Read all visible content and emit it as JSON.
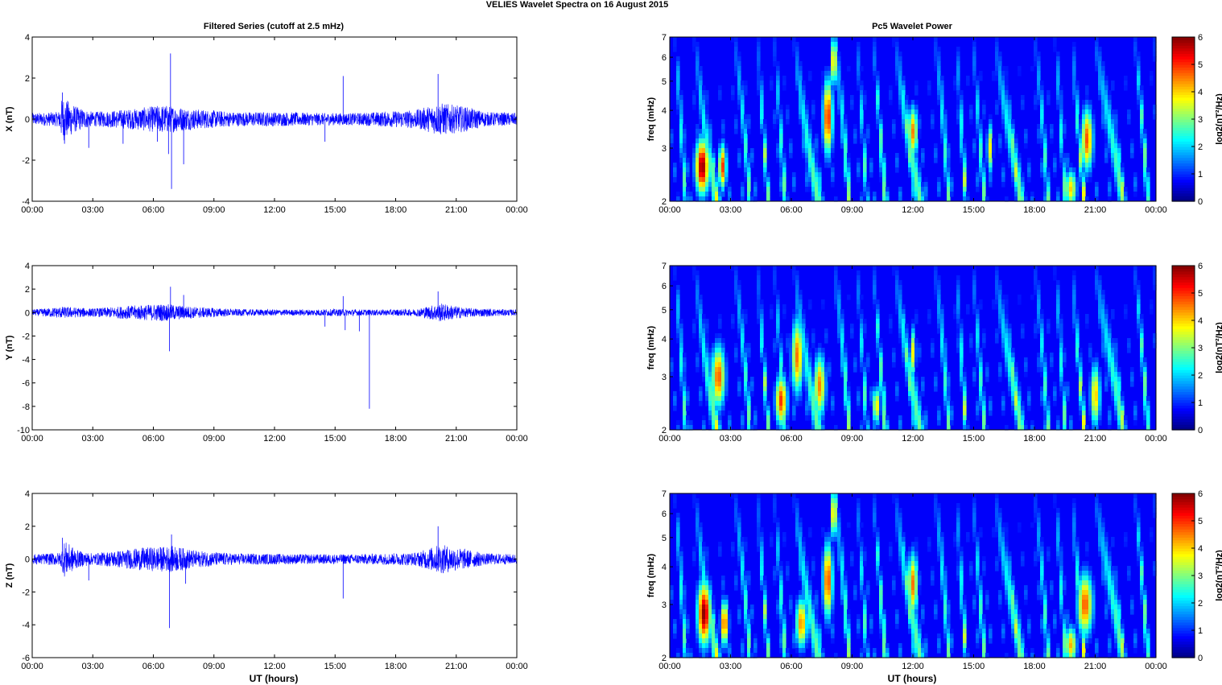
{
  "figure": {
    "title": "VELIES Wavelet Spectra on 16 August    2015",
    "left_column_title": "Filtered Series (cutoff at 2.5 mHz)",
    "right_column_title": "Pc5 Wavelet Power",
    "xlabel": "UT (hours)"
  },
  "colors": {
    "series_line": "#0000ff",
    "axes": "#000000",
    "background": "#ffffff"
  },
  "chart_data": [
    {
      "type": "line",
      "name": "x-series",
      "ylabel": "X (nT)",
      "x_ticks": [
        "00:00",
        "03:00",
        "06:00",
        "09:00",
        "12:00",
        "15:00",
        "18:00",
        "21:00",
        "00:00"
      ],
      "xlim_hours": [
        0,
        24
      ],
      "ylim": [
        -4,
        4
      ],
      "y_ticks": [
        "-4",
        "-2",
        "0",
        "2",
        "4"
      ],
      "noise_envelope": [
        [
          0,
          0.3
        ],
        [
          1.3,
          0.35
        ],
        [
          1.5,
          1.1
        ],
        [
          2.2,
          0.6
        ],
        [
          3,
          0.35
        ],
        [
          5,
          0.5
        ],
        [
          6.5,
          0.7
        ],
        [
          8,
          0.5
        ],
        [
          10,
          0.35
        ],
        [
          12,
          0.35
        ],
        [
          14.5,
          0.3
        ],
        [
          16,
          0.3
        ],
        [
          19,
          0.45
        ],
        [
          20.2,
          0.8
        ],
        [
          21.5,
          0.6
        ],
        [
          22.5,
          0.35
        ],
        [
          24,
          0.3
        ]
      ],
      "spikes": [
        [
          1.5,
          1.3
        ],
        [
          1.6,
          -1.2
        ],
        [
          2.8,
          -1.4
        ],
        [
          4.5,
          -1.2
        ],
        [
          6.2,
          -1.1
        ],
        [
          6.75,
          -1.7
        ],
        [
          6.85,
          3.2
        ],
        [
          6.9,
          -3.4
        ],
        [
          7.5,
          -2.2
        ],
        [
          15.4,
          2.1
        ],
        [
          14.5,
          -1.1
        ],
        [
          20.1,
          2.2
        ]
      ]
    },
    {
      "type": "line",
      "name": "y-series",
      "ylabel": "Y (nT)",
      "x_ticks": [
        "00:00",
        "03:00",
        "06:00",
        "09:00",
        "12:00",
        "15:00",
        "18:00",
        "21:00",
        "00:00"
      ],
      "xlim_hours": [
        0,
        24
      ],
      "ylim": [
        -10,
        4
      ],
      "y_ticks": [
        "-10",
        "-8",
        "-6",
        "-4",
        "-2",
        "0",
        "2",
        "4"
      ],
      "noise_envelope": [
        [
          0,
          0.25
        ],
        [
          1.5,
          0.5
        ],
        [
          3,
          0.35
        ],
        [
          5,
          0.6
        ],
        [
          6.5,
          0.75
        ],
        [
          8,
          0.5
        ],
        [
          10,
          0.3
        ],
        [
          13,
          0.25
        ],
        [
          15,
          0.3
        ],
        [
          17,
          0.25
        ],
        [
          19,
          0.3
        ],
        [
          20.2,
          0.8
        ],
        [
          21.5,
          0.4
        ],
        [
          24,
          0.25
        ]
      ],
      "spikes": [
        [
          6.8,
          -3.3
        ],
        [
          6.85,
          2.2
        ],
        [
          7.5,
          1.5
        ],
        [
          14.5,
          -1.2
        ],
        [
          15.4,
          1.4
        ],
        [
          15.5,
          -1.5
        ],
        [
          16.2,
          -1.6
        ],
        [
          16.7,
          -8.2
        ],
        [
          20.1,
          1.8
        ]
      ]
    },
    {
      "type": "line",
      "name": "z-series",
      "ylabel": "Z (nT)",
      "x_ticks": [
        "00:00",
        "03:00",
        "06:00",
        "09:00",
        "12:00",
        "15:00",
        "18:00",
        "21:00",
        "00:00"
      ],
      "xlim_hours": [
        0,
        24
      ],
      "ylim": [
        -6,
        4
      ],
      "y_ticks": [
        "-6",
        "-4",
        "-2",
        "0",
        "2",
        "4"
      ],
      "noise_envelope": [
        [
          0,
          0.3
        ],
        [
          1.4,
          0.4
        ],
        [
          1.6,
          1.1
        ],
        [
          2.3,
          0.5
        ],
        [
          3,
          0.35
        ],
        [
          5.5,
          0.7
        ],
        [
          7,
          0.8
        ],
        [
          8.2,
          0.5
        ],
        [
          10,
          0.35
        ],
        [
          14,
          0.3
        ],
        [
          16,
          0.3
        ],
        [
          19,
          0.4
        ],
        [
          20.2,
          0.9
        ],
        [
          21.5,
          0.6
        ],
        [
          22.5,
          0.35
        ],
        [
          24,
          0.3
        ]
      ],
      "spikes": [
        [
          1.5,
          1.3
        ],
        [
          2.8,
          -1.3
        ],
        [
          6.8,
          -4.2
        ],
        [
          6.9,
          1.5
        ],
        [
          7.6,
          -1.5
        ],
        [
          15.4,
          -2.4
        ],
        [
          20.1,
          2.0
        ]
      ]
    },
    {
      "type": "heatmap",
      "name": "x-wavelet-power",
      "ylabel": "freq (mHz)",
      "y_scale": "log",
      "ylim_mhz": [
        2,
        7
      ],
      "y_ticks": [
        "2",
        "3",
        "4",
        "5",
        "6",
        "7"
      ],
      "x_ticks": [
        "00:00",
        "03:00",
        "06:00",
        "09:00",
        "12:00",
        "15:00",
        "18:00",
        "21:00",
        "00:00"
      ],
      "xlim_hours": [
        0,
        24
      ],
      "colorbar": {
        "label": "log2(nT²/Hz)",
        "min": 0,
        "max": 6,
        "ticks": [
          "0",
          "1",
          "2",
          "3",
          "4",
          "5",
          "6"
        ]
      },
      "hotspots": [
        [
          1.6,
          2.6,
          0.35,
          0.22,
          6
        ],
        [
          2.6,
          2.6,
          0.2,
          0.18,
          5
        ],
        [
          7.8,
          3.8,
          0.25,
          0.3,
          5.2
        ],
        [
          8.1,
          5.8,
          0.15,
          0.2,
          4.6
        ],
        [
          12,
          3.4,
          0.25,
          0.2,
          4.5
        ],
        [
          20.6,
          3.2,
          0.3,
          0.25,
          4.8
        ],
        [
          19.8,
          2.2,
          0.3,
          0.15,
          4
        ],
        [
          15.8,
          3,
          0.15,
          0.2,
          3.8
        ]
      ]
    },
    {
      "type": "heatmap",
      "name": "y-wavelet-power",
      "ylabel": "freq (mHz)",
      "y_scale": "log",
      "ylim_mhz": [
        2,
        7
      ],
      "y_ticks": [
        "2",
        "3",
        "4",
        "5",
        "6",
        "7"
      ],
      "x_ticks": [
        "00:00",
        "03:00",
        "06:00",
        "09:00",
        "12:00",
        "15:00",
        "18:00",
        "21:00",
        "00:00"
      ],
      "xlim_hours": [
        0,
        24
      ],
      "colorbar": {
        "label": "log2(nT²/Hz)",
        "min": 0,
        "max": 6,
        "ticks": [
          "0",
          "1",
          "2",
          "3",
          "4",
          "5",
          "6"
        ]
      },
      "hotspots": [
        [
          2.4,
          3,
          0.35,
          0.25,
          4.8
        ],
        [
          5.5,
          2.5,
          0.3,
          0.2,
          5
        ],
        [
          6.3,
          3.5,
          0.3,
          0.3,
          4.6
        ],
        [
          7.4,
          2.8,
          0.3,
          0.25,
          4.5
        ],
        [
          10.2,
          2.4,
          0.2,
          0.15,
          4
        ],
        [
          12,
          3.6,
          0.15,
          0.2,
          3.8
        ],
        [
          21,
          2.6,
          0.25,
          0.25,
          4.2
        ]
      ]
    },
    {
      "type": "heatmap",
      "name": "z-wavelet-power",
      "ylabel": "freq (mHz)",
      "y_scale": "log",
      "ylim_mhz": [
        2,
        7
      ],
      "y_ticks": [
        "2",
        "3",
        "4",
        "5",
        "6",
        "7"
      ],
      "x_ticks": [
        "00:00",
        "03:00",
        "06:00",
        "09:00",
        "12:00",
        "15:00",
        "18:00",
        "21:00",
        "00:00"
      ],
      "xlim_hours": [
        0,
        24
      ],
      "colorbar": {
        "label": "log2(nT²/Hz)",
        "min": 0,
        "max": 6,
        "ticks": [
          "0",
          "1",
          "2",
          "3",
          "4",
          "5",
          "6"
        ]
      },
      "hotspots": [
        [
          1.7,
          2.8,
          0.35,
          0.25,
          6
        ],
        [
          2.7,
          2.6,
          0.2,
          0.18,
          5
        ],
        [
          6.5,
          2.6,
          0.3,
          0.2,
          4.5
        ],
        [
          7.8,
          3.6,
          0.25,
          0.3,
          5
        ],
        [
          8.1,
          6,
          0.15,
          0.2,
          4.6
        ],
        [
          12,
          3.5,
          0.25,
          0.25,
          4.6
        ],
        [
          20.5,
          3,
          0.4,
          0.25,
          4.8
        ],
        [
          19.8,
          2.2,
          0.3,
          0.15,
          4.2
        ]
      ]
    }
  ]
}
